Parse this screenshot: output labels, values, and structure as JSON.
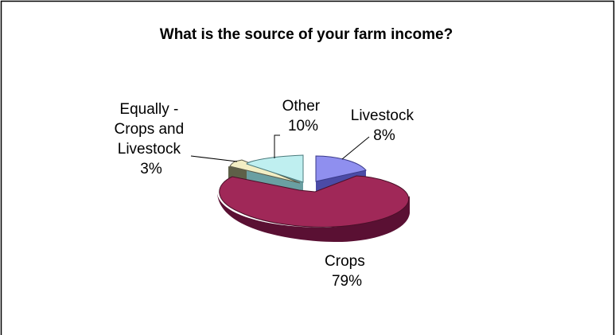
{
  "chart_data": {
    "type": "pie",
    "title": "What is the source of your farm income?",
    "slices": [
      {
        "label_lines": [
          "Livestock",
          "8%"
        ],
        "value": 8,
        "color": "#8f8fef"
      },
      {
        "label_lines": [
          "Crops",
          "79%"
        ],
        "value": 79,
        "color": "#a02858"
      },
      {
        "label_lines": [
          "Equally -",
          "Crops and",
          "Livestock",
          "3%"
        ],
        "value": 3,
        "color": "#f2eec4"
      },
      {
        "label_lines": [
          "Other",
          "10%"
        ],
        "value": 10,
        "color": "#bfeff0"
      }
    ],
    "style": "3d-exploded"
  }
}
